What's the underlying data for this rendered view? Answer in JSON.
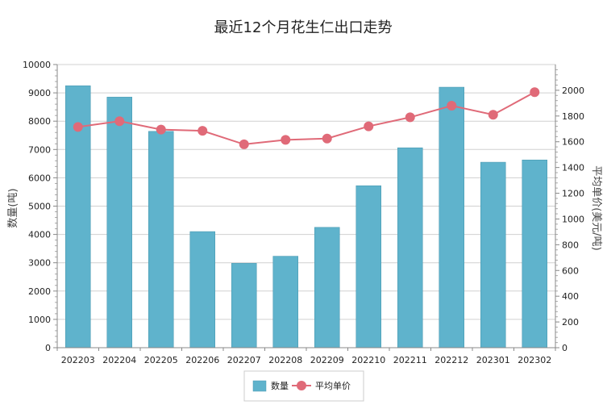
{
  "chart_data": {
    "type": "bar",
    "title": "最近12个月花生仁出口走势",
    "categories": [
      "202203",
      "202204",
      "202205",
      "202206",
      "202207",
      "202208",
      "202209",
      "202210",
      "202211",
      "202212",
      "202301",
      "202302"
    ],
    "series": [
      {
        "name": "数量",
        "type": "bar",
        "axis": "left",
        "color": "#5fb3cc",
        "values": [
          9250,
          8850,
          7640,
          4100,
          2980,
          3230,
          4250,
          5720,
          7060,
          9200,
          6550,
          6630
        ]
      },
      {
        "name": "平均单价",
        "type": "line",
        "axis": "right",
        "color": "#e06a78",
        "values": [
          1715,
          1760,
          1695,
          1685,
          1580,
          1615,
          1625,
          1720,
          1790,
          1880,
          1810,
          1985
        ]
      }
    ],
    "ylabel": "数量(吨)",
    "y2label": "平均单价(美元/吨)",
    "ylim": [
      0,
      10000
    ],
    "y2lim": [
      0,
      2200
    ],
    "yticks": [
      0,
      1000,
      2000,
      3000,
      4000,
      5000,
      6000,
      7000,
      8000,
      9000,
      10000
    ],
    "y2ticks": [
      0,
      200,
      400,
      600,
      800,
      1000,
      1200,
      1400,
      1600,
      1800,
      2000
    ],
    "grid": true,
    "legend": "bottom-center"
  }
}
